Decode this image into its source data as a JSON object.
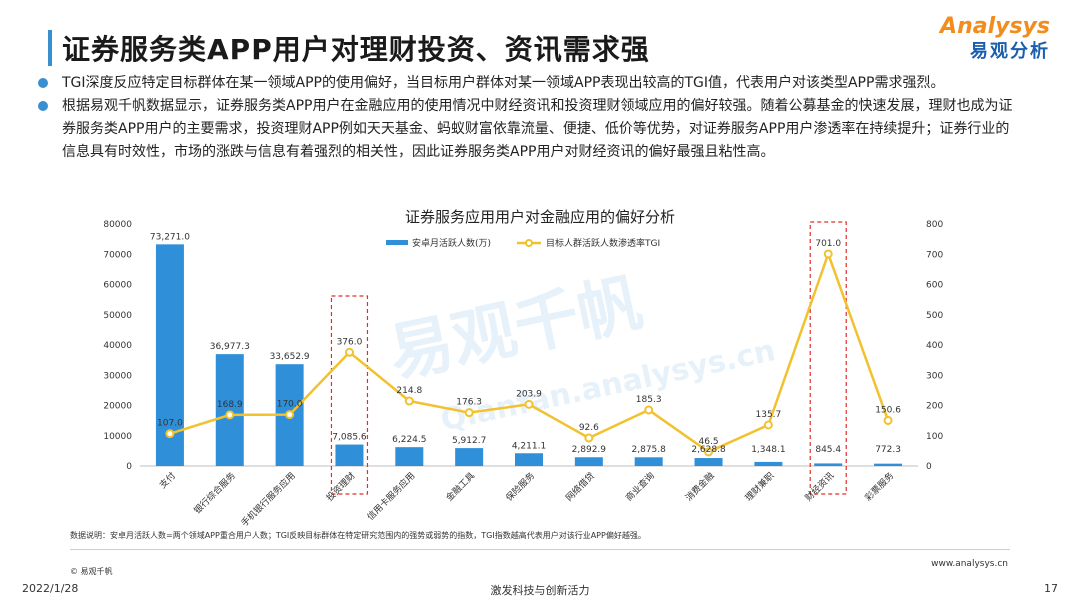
{
  "header": {
    "title": "证券服务类APP用户对理财投资、资讯需求强",
    "logo_en": "Analysys",
    "logo_cn": "易观分析"
  },
  "bullets": [
    "TGI深度反应特定目标群体在某一领域APP的使用偏好，当目标用户群体对某一领域APP表现出较高的TGI值，代表用户对该类型APP需求强烈。",
    "根据易观千帆数据显示，证券服务类APP用户在金融应用的使用情况中财经资讯和投资理财领域应用的偏好较强。随着公募基金的快速发展，理财也成为证券服务类APP用户的主要需求，投资理财APP例如天天基金、蚂蚁财富依靠流量、便捷、低价等优势，对证券服务APP用户渗透率在持续提升；证券行业的信息具有时效性，市场的涨跌与信息有着强烈的相关性，因此证券服务类APP用户对财经资讯的偏好最强且粘性高。"
  ],
  "watermark": {
    "cn": "易观千帆",
    "url": "Qianfan.analysys.cn"
  },
  "chart_data": {
    "type": "bar",
    "title": "证券服务应用用户对金融应用的偏好分析",
    "categories": [
      "支付",
      "银行综合服务",
      "手机银行服务应用",
      "投资理财",
      "信用卡服务应用",
      "金融工具",
      "保险服务",
      "网络借贷",
      "商业查询",
      "消费金融",
      "理财兼职",
      "财经资讯",
      "彩票服务"
    ],
    "series": [
      {
        "name": "安卓月活跃人数(万)",
        "type": "bar",
        "axis": "left",
        "color": "#2f8fd8",
        "values": [
          73271.0,
          36977.3,
          33652.9,
          7085.6,
          6224.5,
          5912.7,
          4211.1,
          2892.9,
          2875.8,
          2628.8,
          1348.1,
          845.4,
          772.3
        ],
        "labels": [
          "73,271.0",
          "36,977.3",
          "33,652.9",
          "7,085.6",
          "6,224.5",
          "5,912.7",
          "4,211.1",
          "2,892.9",
          "2,875.8",
          "2,628.8",
          "1,348.1",
          "845.4",
          "772.3"
        ]
      },
      {
        "name": "目标人群活跃人数渗透率TGI",
        "type": "line",
        "axis": "right",
        "color": "#f2c12e",
        "values": [
          107.0,
          168.9,
          170.0,
          376.0,
          214.8,
          176.3,
          203.9,
          92.6,
          185.3,
          46.5,
          135.7,
          701.0,
          150.6
        ],
        "labels": [
          "107.0",
          "168.9",
          "170.0",
          "376.0",
          "214.8",
          "176.3",
          "203.9",
          "92.6",
          "185.3",
          "46.5",
          "135.7",
          "701.0",
          "150.6"
        ]
      }
    ],
    "y_left": {
      "min": 0,
      "max": 80000,
      "step": 10000
    },
    "y_right": {
      "min": 0,
      "max": 800,
      "step": 100
    },
    "highlighted_categories": [
      "投资理财",
      "财经资讯"
    ],
    "legend_position": "top"
  },
  "footnote": "数据说明：安卓月活跃人数=两个领域APP重合用户人数；TGI反映目标群体在特定研究范围内的强势或弱势的指数，TGI指数越高代表用户对该行业APP偏好越强。",
  "copyright": "© 易观千帆",
  "website": "www.analysys.cn",
  "footer": {
    "date": "2022/1/28",
    "slogan": "激发科技与创新活力",
    "page": "17"
  }
}
